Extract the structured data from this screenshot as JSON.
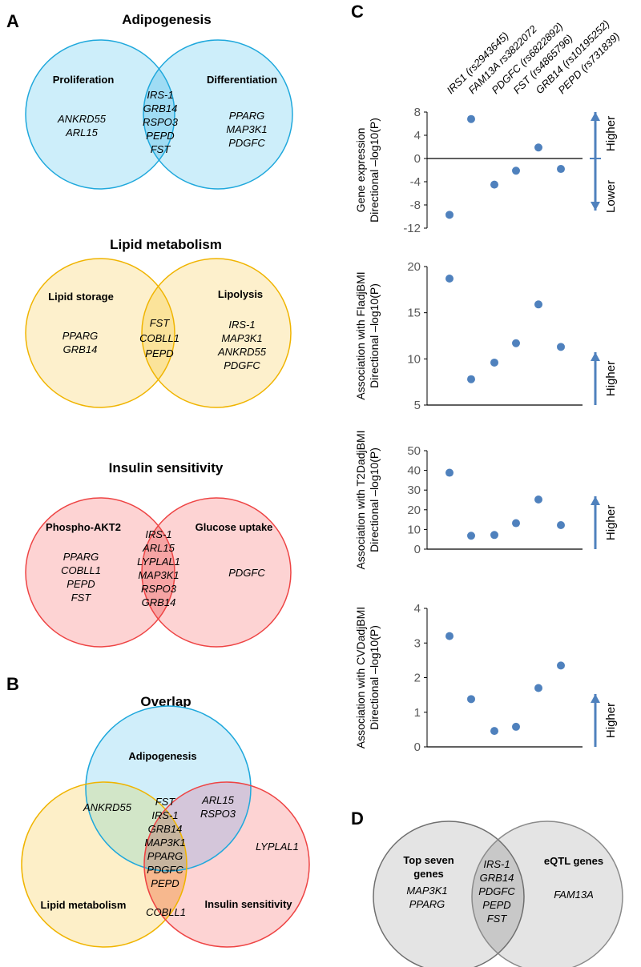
{
  "panels": {
    "a": "A",
    "b": "B",
    "c": "C",
    "d": "D"
  },
  "adipogenesis": {
    "title": "Adipogenesis",
    "left_label": "Proliferation",
    "right_label": "Differentiation",
    "left_genes": [
      "ANKRD55",
      "ARL15"
    ],
    "center_genes": [
      "IRS-1",
      "GRB14",
      "RSPO3",
      "PEPD",
      "FST"
    ],
    "right_genes": [
      "PPARG",
      "MAP3K1",
      "PDGFC"
    ]
  },
  "lipid": {
    "title": "Lipid metabolism",
    "left_label": "Lipid storage",
    "right_label": "Lipolysis",
    "left_genes": [
      "PPARG",
      "GRB14"
    ],
    "center_genes": [
      "FST",
      "COBLL1",
      "PEPD"
    ],
    "right_genes": [
      "IRS-1",
      "MAP3K1",
      "ANKRD55",
      "PDGFC"
    ]
  },
  "insulin": {
    "title": "Insulin sensitivity",
    "left_label": "Phospho-AKT2",
    "right_label": "Glucose uptake",
    "left_genes": [
      "PPARG",
      "COBLL1",
      "PEPD",
      "FST"
    ],
    "center_genes": [
      "IRS-1",
      "ARL15",
      "LYPLAL1",
      "MAP3K1",
      "RSPO3",
      "GRB14"
    ],
    "right_genes": [
      "PDGFC"
    ]
  },
  "overlap": {
    "title": "Overlap",
    "adipogenesis_label": "Adipogenesis",
    "lipid_label": "Lipid metabolism",
    "insulin_label": "Insulin sensitivity",
    "adipo_lipid_genes": [
      "ANKRD55"
    ],
    "adipo_insulin_genes": [
      "ARL15",
      "RSPO3"
    ],
    "all_three_genes": [
      "FST",
      "IRS-1",
      "GRB14",
      "MAP3K1",
      "PPARG",
      "PDGFC",
      "PEPD"
    ],
    "lipid_insulin_genes": [
      "COBLL1"
    ],
    "insulin_only_genes": [
      "LYPLAL1"
    ]
  },
  "eqtl": {
    "left_label_line1": "Top seven",
    "left_label_line2": "genes",
    "right_label": "eQTL genes",
    "left_genes": [
      "MAP3K1",
      "PPARG"
    ],
    "center_genes": [
      "IRS-1",
      "GRB14",
      "PDGFC",
      "PEPD",
      "FST"
    ],
    "right_genes": [
      "FAM13A"
    ]
  },
  "colors": {
    "blue_fill": "#cdeefa",
    "blue_stroke": "#1fa8dc",
    "blue_overlap": "#9fdcf4",
    "yellow_fill": "#fdf0cc",
    "yellow_stroke": "#f0b400",
    "yellow_overlap": "#fbe39a",
    "red_fill": "#fdd3d3",
    "red_stroke": "#ee4444",
    "red_overlap": "#f6a4a4",
    "grey_fill": "#e4e4e4",
    "grey_stroke": "#7a7a7a",
    "grey_overlap": "#c8c8c8",
    "point": "#4f81bd",
    "arrow": "#4f81bd"
  },
  "chart_data": [
    {
      "type": "scatter",
      "title": "",
      "categories": [
        "IRS1 (rs2943645)",
        "FAM13A rs3822072",
        "PDGFC (rs6822892)",
        "FST (rs4865796)",
        "GRB14 (rs10195252)",
        "PEPD (rs731839)"
      ],
      "ylabel_line1": "Gene expression",
      "ylabel_line2": "Directional –log10(P)",
      "ylim": [
        -12,
        8
      ],
      "yticks": [
        "8",
        "4",
        "0",
        "-4",
        "-8",
        "-12"
      ],
      "values": [
        -9.7,
        6.8,
        -4.5,
        -2.1,
        1.9,
        -1.8
      ],
      "arrow_up_label": "Higher",
      "arrow_down_label": "Lower"
    },
    {
      "type": "scatter",
      "title": "",
      "ylabel_line1": "Association with FIadjBMI",
      "ylabel_line2": "Directional –log10(P)",
      "ylim": [
        5,
        20
      ],
      "yticks": [
        "20",
        "15",
        "10",
        "5"
      ],
      "values": [
        18.7,
        7.8,
        9.6,
        11.7,
        15.9,
        11.3
      ],
      "arrow_up_label": "Higher"
    },
    {
      "type": "scatter",
      "title": "",
      "ylabel_line1": "Association with T2DadjBMI",
      "ylabel_line2": "Directional –log10(P)",
      "ylim": [
        0,
        50
      ],
      "yticks": [
        "50",
        "40",
        "30",
        "20",
        "10",
        "0"
      ],
      "values": [
        38.8,
        6.8,
        7.2,
        13.2,
        25.2,
        12.2
      ],
      "arrow_up_label": "Higher"
    },
    {
      "type": "scatter",
      "title": "",
      "ylabel_line1": "Association with CVDadjBMI",
      "ylabel_line2": "Directional –log10(P)",
      "ylim": [
        0,
        4
      ],
      "yticks": [
        "4",
        "3",
        "2",
        "1",
        "0"
      ],
      "values": [
        3.2,
        1.38,
        0.46,
        0.58,
        1.7,
        2.35
      ],
      "arrow_up_label": "Higher"
    }
  ]
}
